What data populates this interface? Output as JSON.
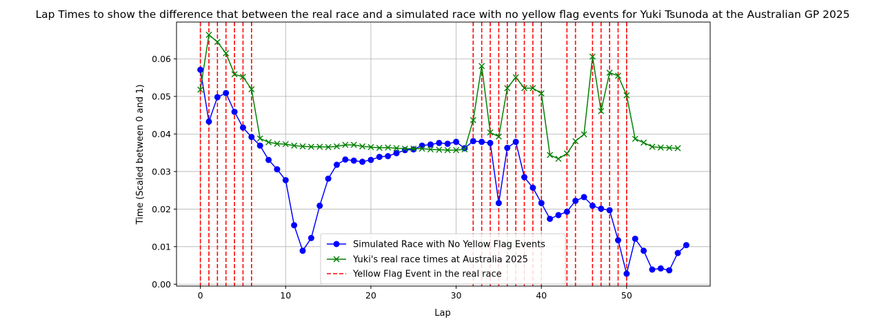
{
  "chart_data": {
    "type": "line",
    "title": "Lap Times to show the difference that between the real race and a simulated race with no yellow flag events for Yuki Tsunoda at the Australian GP 2025",
    "xlabel": "Lap",
    "ylabel": "Time (Scaled between 0 and 1)",
    "xlim": [
      -2.8,
      59.8
    ],
    "ylim": [
      -0.0005,
      0.0698
    ],
    "xticks": [
      0,
      10,
      20,
      30,
      40,
      50
    ],
    "yticks": [
      0.0,
      0.01,
      0.02,
      0.03,
      0.04,
      0.05,
      0.06
    ],
    "ytick_labels": [
      "0.00",
      "0.01",
      "0.02",
      "0.03",
      "0.04",
      "0.05",
      "0.06"
    ],
    "grid": true,
    "legend_position": "lower center",
    "series": [
      {
        "name": "Simulated Race with No Yellow Flag Events",
        "color": "#0000ff",
        "marker": "circle",
        "x": [
          0,
          1,
          2,
          3,
          4,
          5,
          6,
          7,
          8,
          9,
          10,
          11,
          12,
          13,
          14,
          15,
          16,
          17,
          18,
          19,
          20,
          21,
          22,
          23,
          24,
          25,
          26,
          27,
          28,
          29,
          30,
          31,
          32,
          33,
          34,
          35,
          36,
          37,
          38,
          39,
          40,
          41,
          42,
          43,
          44,
          45,
          46,
          47,
          48,
          49,
          50,
          51,
          52,
          53,
          54,
          55,
          56,
          57
        ],
        "y": [
          0.0571,
          0.0433,
          0.0498,
          0.0509,
          0.0459,
          0.0417,
          0.0392,
          0.0369,
          0.0331,
          0.0306,
          0.0277,
          0.0157,
          0.0089,
          0.0123,
          0.0209,
          0.0281,
          0.0318,
          0.0332,
          0.0329,
          0.0326,
          0.0331,
          0.0339,
          0.0341,
          0.0349,
          0.0357,
          0.0359,
          0.0369,
          0.0372,
          0.0376,
          0.0374,
          0.0379,
          0.0362,
          0.0381,
          0.0379,
          0.0376,
          0.0216,
          0.0363,
          0.0379,
          0.0285,
          0.0257,
          0.0216,
          0.0174,
          0.0184,
          0.0193,
          0.0222,
          0.0232,
          0.0209,
          0.0201,
          0.0197,
          0.0117,
          0.0028,
          0.0121,
          0.0089,
          0.0039,
          0.0042,
          0.0037,
          0.0083,
          0.0104
        ]
      },
      {
        "name": "Yuki's real race times at Australia 2025",
        "color": "#008000",
        "marker": "x",
        "x": [
          0,
          1,
          2,
          3,
          4,
          5,
          6,
          7,
          8,
          9,
          10,
          11,
          12,
          13,
          14,
          15,
          16,
          17,
          18,
          19,
          20,
          21,
          22,
          23,
          24,
          25,
          26,
          27,
          28,
          29,
          30,
          31,
          32,
          33,
          34,
          35,
          36,
          37,
          38,
          39,
          40,
          41,
          42,
          43,
          44,
          45,
          46,
          47,
          48,
          49,
          50,
          51,
          52,
          53,
          54,
          55,
          56
        ],
        "y": [
          0.0518,
          0.0664,
          0.0645,
          0.0615,
          0.0559,
          0.0552,
          0.0519,
          0.0388,
          0.0378,
          0.0374,
          0.0373,
          0.0369,
          0.0367,
          0.0366,
          0.0366,
          0.0365,
          0.0367,
          0.0371,
          0.0371,
          0.0367,
          0.0365,
          0.0363,
          0.0364,
          0.0362,
          0.0361,
          0.0361,
          0.0361,
          0.0359,
          0.0358,
          0.0357,
          0.0357,
          0.0359,
          0.0437,
          0.0581,
          0.0404,
          0.0393,
          0.0522,
          0.0551,
          0.0522,
          0.0522,
          0.0508,
          0.0344,
          0.0334,
          0.0348,
          0.0381,
          0.0399,
          0.0606,
          0.0461,
          0.0563,
          0.0555,
          0.0503,
          0.0387,
          0.0377,
          0.0366,
          0.0364,
          0.0363,
          0.0362
        ]
      }
    ],
    "yellow_flag": {
      "name": "Yellow Flag Event in the real race",
      "color": "#ff0000",
      "laps": [
        0,
        1,
        2,
        3,
        4,
        5,
        6,
        32,
        33,
        34,
        35,
        36,
        37,
        38,
        39,
        40,
        43,
        44,
        46,
        47,
        48,
        49,
        50
      ]
    }
  }
}
